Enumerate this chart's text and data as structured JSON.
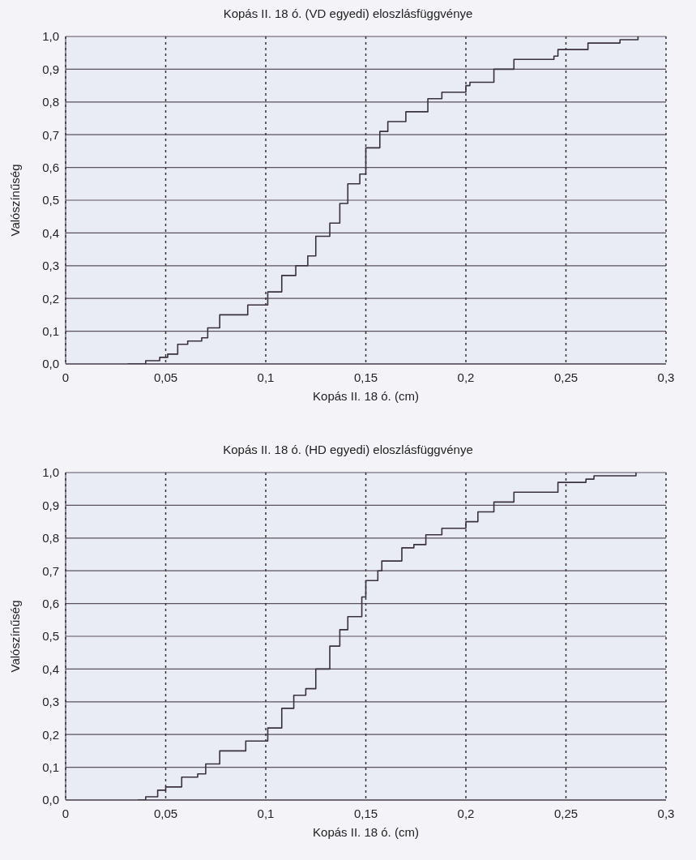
{
  "chart_data": [
    {
      "type": "step",
      "title": "Kopás II. 18 ó. (VD egyedi) eloszlásfüggvénye",
      "xlabel": "Kopás II. 18 ó. (cm)",
      "ylabel": "Valószínűség",
      "xlim": [
        0,
        0.3
      ],
      "xticks": [
        0,
        {
          "value": 0.05,
          "label": "0,05"
        },
        {
          "value": 0.1,
          "label": "0,1"
        },
        {
          "value": 0.15,
          "label": "0,15"
        },
        {
          "value": 0.2,
          "label": "0,2"
        },
        {
          "value": 0.25,
          "label": "0,25"
        },
        {
          "value": 0.3,
          "label": "0,3"
        }
      ],
      "ylim": [
        0,
        1
      ],
      "yticks": [
        {
          "value": 0,
          "label": "0,0"
        },
        {
          "value": 0.1,
          "label": "0,1"
        },
        {
          "value": 0.2,
          "label": "0,2"
        },
        {
          "value": 0.3,
          "label": "0,3"
        },
        {
          "value": 0.4,
          "label": "0,4"
        },
        {
          "value": 0.5,
          "label": "0,5"
        },
        {
          "value": 0.6,
          "label": "0,6"
        },
        {
          "value": 0.7,
          "label": "0,7"
        },
        {
          "value": 0.8,
          "label": "0,8"
        },
        {
          "value": 0.9,
          "label": "0,9"
        },
        {
          "value": 1,
          "label": "1,0"
        }
      ],
      "grid": true,
      "marker": "none",
      "series": [
        {
          "color": "#3a3040",
          "x": [
            0.031,
            0.04,
            0.047,
            0.051,
            0.056,
            0.061,
            0.068,
            0.071,
            0.077,
            0.085,
            0.091,
            0.099,
            0.101,
            0.108,
            0.115,
            0.121,
            0.125,
            0.132,
            0.137,
            0.141,
            0.147,
            0.15,
            0.157,
            0.161,
            0.17,
            0.176,
            0.181,
            0.188,
            0.2,
            0.202,
            0.214,
            0.224,
            0.244,
            0.246,
            0.261,
            0.277,
            0.286
          ],
          "values": [
            0,
            0.01,
            0.02,
            0.03,
            0.06,
            0.07,
            0.08,
            0.11,
            0.15,
            0.15,
            0.18,
            0.18,
            0.22,
            0.27,
            0.3,
            0.33,
            0.39,
            0.43,
            0.49,
            0.55,
            0.58,
            0.66,
            0.71,
            0.74,
            0.77,
            0.77,
            0.81,
            0.83,
            0.85,
            0.86,
            0.9,
            0.93,
            0.94,
            0.96,
            0.98,
            0.99,
            1.0
          ]
        }
      ]
    },
    {
      "type": "step",
      "title": "Kopás II. 18 ó. (HD egyedi) eloszlásfüggvénye",
      "xlabel": "Kopás II. 18 ó. (cm)",
      "ylabel": "Valószínűség",
      "xlim": [
        0,
        0.3
      ],
      "xticks": [
        0,
        {
          "value": 0.05,
          "label": "0,05"
        },
        {
          "value": 0.1,
          "label": "0,1"
        },
        {
          "value": 0.15,
          "label": "0,15"
        },
        {
          "value": 0.2,
          "label": "0,2"
        },
        {
          "value": 0.25,
          "label": "0,25"
        },
        {
          "value": 0.3,
          "label": "0,3"
        }
      ],
      "ylim": [
        0,
        1
      ],
      "yticks": [
        {
          "value": 0,
          "label": "0,0"
        },
        {
          "value": 0.1,
          "label": "0,1"
        },
        {
          "value": 0.2,
          "label": "0,2"
        },
        {
          "value": 0.3,
          "label": "0,3"
        },
        {
          "value": 0.4,
          "label": "0,4"
        },
        {
          "value": 0.5,
          "label": "0,5"
        },
        {
          "value": 0.6,
          "label": "0,6"
        },
        {
          "value": 0.7,
          "label": "0,7"
        },
        {
          "value": 0.8,
          "label": "0,8"
        },
        {
          "value": 0.9,
          "label": "0,9"
        },
        {
          "value": 1,
          "label": "1,0"
        }
      ],
      "grid": true,
      "marker": "none",
      "series": [
        {
          "color": "#3a3040",
          "x": [
            0.036,
            0.04,
            0.046,
            0.05,
            0.058,
            0.066,
            0.07,
            0.077,
            0.085,
            0.09,
            0.099,
            0.101,
            0.108,
            0.114,
            0.12,
            0.125,
            0.132,
            0.137,
            0.141,
            0.148,
            0.15,
            0.156,
            0.158,
            0.168,
            0.174,
            0.18,
            0.188,
            0.2,
            0.206,
            0.214,
            0.224,
            0.244,
            0.246,
            0.26,
            0.264,
            0.285
          ],
          "values": [
            0,
            0.01,
            0.03,
            0.04,
            0.07,
            0.08,
            0.11,
            0.15,
            0.15,
            0.18,
            0.18,
            0.22,
            0.28,
            0.32,
            0.34,
            0.4,
            0.47,
            0.52,
            0.56,
            0.62,
            0.67,
            0.7,
            0.73,
            0.77,
            0.78,
            0.81,
            0.83,
            0.85,
            0.88,
            0.91,
            0.94,
            0.94,
            0.97,
            0.98,
            0.99,
            1.0
          ]
        }
      ]
    }
  ]
}
